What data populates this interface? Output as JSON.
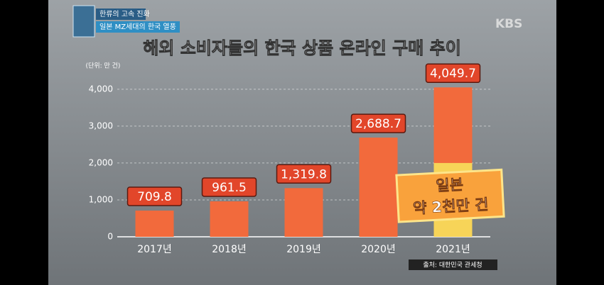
{
  "chart_data": {
    "type": "bar",
    "title": "해외 소비자들의 한국 상품 온라인 구매 추이",
    "badge": {
      "line1": "한류의 고속 진화",
      "line2": "일본 MZ세대의 한국 열풍"
    },
    "logo": "KBS",
    "unit": "(단위: 만 건)",
    "source": "출처: 대한민국 관세청",
    "categories": [
      "2017년",
      "2018년",
      "2019년",
      "2020년",
      "2021년"
    ],
    "values": [
      709.8,
      961.5,
      1319.8,
      2688.7,
      4049.7
    ],
    "value_labels": [
      "709.8",
      "961.5",
      "1,319.8",
      "2,688.7",
      "4,049.7"
    ],
    "color": "#f26a3c",
    "annotation": {
      "lines": [
        "일본",
        "약 2천만 건"
      ],
      "value": 2000,
      "color": "#f7d458"
    },
    "ylim": [
      0,
      4400
    ],
    "yticks": [
      0,
      {
        "value": 1000,
        "label": "1,000"
      },
      {
        "value": 2000,
        "label": "2,000"
      },
      {
        "value": 3000,
        "label": "3,000"
      },
      {
        "value": 4000,
        "label": "4,000"
      }
    ],
    "grid": true
  }
}
